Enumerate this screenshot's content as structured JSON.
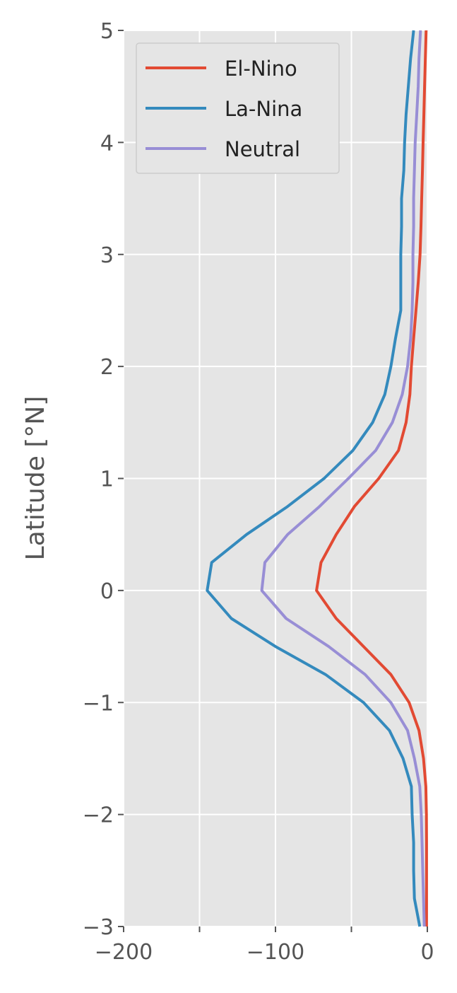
{
  "chart_data": {
    "type": "line",
    "title": "",
    "xlabel": "",
    "ylabel": "Latitude [°N]",
    "xlim": [
      -200,
      0
    ],
    "ylim": [
      -3,
      5
    ],
    "xticks": [
      -200,
      -150,
      -100,
      -50,
      0
    ],
    "xtick_labels": [
      "−200",
      "",
      "−100",
      "",
      "0"
    ],
    "yticks": [
      -3,
      -2,
      -1,
      0,
      1,
      2,
      3,
      4,
      5
    ],
    "ytick_labels": [
      "−3",
      "−2",
      "−1",
      "0",
      "1",
      "2",
      "3",
      "4",
      "5"
    ],
    "grid": true,
    "legend_position": "top-left",
    "style": "ggplot",
    "y": [
      -3.0,
      -2.75,
      -2.5,
      -2.25,
      -2.0,
      -1.75,
      -1.5,
      -1.25,
      -1.0,
      -0.75,
      -0.5,
      -0.25,
      0.0,
      0.25,
      0.5,
      0.75,
      1.0,
      1.25,
      1.5,
      1.75,
      2.0,
      2.25,
      2.5,
      2.75,
      3.0,
      3.25,
      3.5,
      3.75,
      4.0,
      4.25,
      4.5,
      4.75,
      5.0
    ],
    "series": [
      {
        "name": "El-Nino",
        "color": "#E24A33",
        "x": [
          -0.5,
          -0.5,
          -0.5,
          -0.5,
          -0.6,
          -1.0,
          -2.5,
          -5.5,
          -12.0,
          -24.0,
          -42.0,
          -60.0,
          -73.0,
          -70.0,
          -60.0,
          -48.0,
          -32.0,
          -19.0,
          -14.0,
          -11.5,
          -10.5,
          -9.0,
          -7.5,
          -6.0,
          -4.8,
          -4.2,
          -3.7,
          -3.2,
          -2.8,
          -2.3,
          -1.8,
          -1.3,
          -0.8
        ]
      },
      {
        "name": "La-Nina",
        "color": "#348ABD",
        "x": [
          -5.0,
          -8.5,
          -9.0,
          -9.0,
          -10.0,
          -10.5,
          -16.0,
          -25.0,
          -42.0,
          -67.0,
          -100.0,
          -129.0,
          -145.0,
          -142.0,
          -119.0,
          -92.0,
          -68.0,
          -49.0,
          -36.0,
          -28.0,
          -24.0,
          -21.0,
          -17.5,
          -17.5,
          -17.5,
          -17.0,
          -17.0,
          -15.5,
          -15.0,
          -14.0,
          -12.5,
          -11.0,
          -9.0
        ]
      },
      {
        "name": "Neutral",
        "color": "#988ED5",
        "x": [
          -2.0,
          -2.5,
          -3.0,
          -3.5,
          -4.0,
          -5.0,
          -8.5,
          -13.0,
          -24.0,
          -41.0,
          -65.0,
          -93.0,
          -109.0,
          -107.0,
          -92.0,
          -71.0,
          -52.0,
          -34.0,
          -23.0,
          -16.5,
          -13.0,
          -11.0,
          -10.0,
          -9.5,
          -9.5,
          -9.0,
          -9.0,
          -8.5,
          -8.0,
          -7.0,
          -6.0,
          -5.5,
          -4.5
        ]
      }
    ]
  }
}
